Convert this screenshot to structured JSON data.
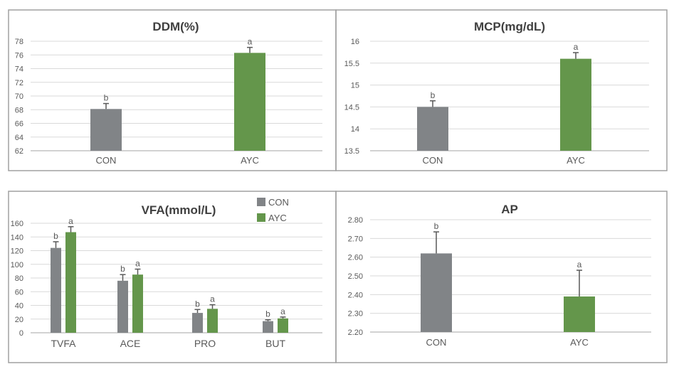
{
  "colors": {
    "CON": "#818487",
    "AYC": "#64964b",
    "grid": "#d9d9d9",
    "axis": "#a6a6a6",
    "border": "#a0a0a0"
  },
  "chart_data": [
    {
      "type": "bar",
      "title": "DDM(%)",
      "categories": [
        "CON",
        "AYC"
      ],
      "values": [
        68.1,
        76.3
      ],
      "error": [
        0.8,
        0.8
      ],
      "significance": [
        "b",
        "a"
      ],
      "ylim": [
        62,
        78
      ],
      "yticks": [
        "62",
        "64",
        "66",
        "68",
        "70",
        "72",
        "74",
        "76",
        "78"
      ],
      "grid": true
    },
    {
      "type": "bar",
      "title": "MCP(mg/dL)",
      "categories": [
        "CON",
        "AYC"
      ],
      "values": [
        14.5,
        15.6
      ],
      "error": [
        0.14,
        0.14
      ],
      "significance": [
        "b",
        "a"
      ],
      "ylim": [
        13.5,
        16
      ],
      "yticks": [
        "13.5",
        "14",
        "14.5",
        "15",
        "15.5",
        "16"
      ],
      "grid": true
    },
    {
      "type": "bar",
      "title": "VFA(mmol/L)",
      "categories": [
        "TVFA",
        "ACE",
        "PRO",
        "BUT"
      ],
      "series": [
        {
          "name": "CON",
          "values": [
            124,
            76,
            29,
            17
          ],
          "error": [
            9,
            9,
            5,
            2
          ],
          "significance": [
            "b",
            "b",
            "b",
            "b"
          ]
        },
        {
          "name": "AYC",
          "values": [
            147,
            85,
            35,
            21
          ],
          "error": [
            8,
            8,
            6,
            2
          ],
          "significance": [
            "a",
            "a",
            "a",
            "a"
          ]
        }
      ],
      "ylim": [
        0,
        160
      ],
      "yticks": [
        "0",
        "20",
        "40",
        "60",
        "80",
        "100",
        "120",
        "140",
        "160"
      ],
      "legend": "top-right",
      "grid": true
    },
    {
      "type": "bar",
      "title": "AP",
      "categories": [
        "CON",
        "AYC"
      ],
      "values": [
        2.62,
        2.39
      ],
      "error": [
        0.115,
        0.14
      ],
      "significance": [
        "b",
        "a"
      ],
      "ylim": [
        2.2,
        2.8
      ],
      "yticks": [
        "2.20",
        "2.30",
        "2.40",
        "2.50",
        "2.60",
        "2.70",
        "2.80"
      ],
      "grid": true
    }
  ]
}
